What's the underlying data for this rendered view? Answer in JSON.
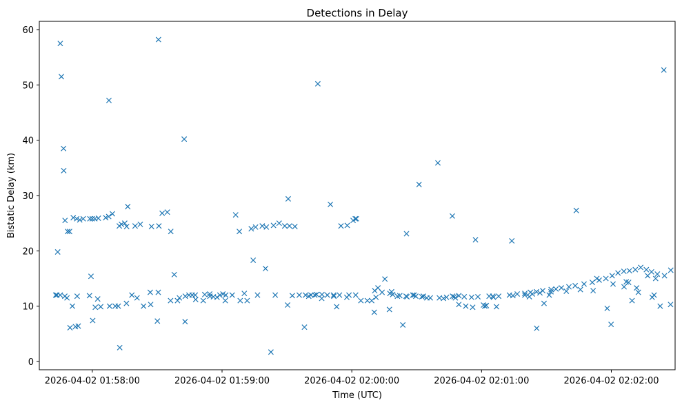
{
  "chart_data": {
    "type": "scatter",
    "title": "Detections in Delay",
    "xlabel": "Time (UTC)",
    "ylabel": "Bistatic Delay (km)",
    "x_unit": "seconds since 2026-04-02 01:57:00",
    "xlim": [
      35.5,
      329.5
    ],
    "ylim": [
      -1.5,
      61.5
    ],
    "x_ticks": [
      {
        "value": 60,
        "label": "2026-04-02 01:58:00"
      },
      {
        "value": 120,
        "label": "2026-04-02 01:59:00"
      },
      {
        "value": 180,
        "label": "2026-04-02 02:00:00"
      },
      {
        "value": 240,
        "label": "2026-04-02 02:01:00"
      },
      {
        "value": 300,
        "label": "2026-04-02 02:02:00"
      }
    ],
    "y_ticks": [
      0,
      10,
      20,
      30,
      40,
      50,
      60
    ],
    "marker": "x",
    "color": "#1f77b4",
    "series": [
      {
        "name": "Detections",
        "x": [
          45.2,
          45.7,
          46.7,
          47.4,
          48.6,
          49.5,
          51.2,
          52.8,
          54.2,
          55.8,
          58.9,
          60.0,
          61.2,
          62.8,
          66.2,
          67.6,
          69.3,
          72.5,
          73.5,
          75.0,
          75.9,
          79.8,
          82.2,
          87.4,
          90.8,
          92.3,
          94.7,
          96.3,
          99.4,
          100.3,
          104.7,
          106.2,
          107.6,
          112.0,
          114.4,
          116.0,
          117.7,
          119.0,
          120.4,
          121.7,
          128.0,
          133.5,
          135.5,
          138.6,
          140.5,
          143.8,
          146.4,
          149.0,
          151.2,
          153.7,
          155.7,
          158.6,
          161.1,
          163.7,
          166.2,
          168.7,
          171.6,
          175.0,
          177.9,
          180.6,
          182.1,
          184.2,
          187.2,
          190.6,
          194.0,
          197.6,
          198.9,
          202.2,
          205.1,
          208.2,
          209.6,
          212.4,
          216.3,
          220.5,
          223.8,
          226.6,
          229.5,
          232.0,
          235.4,
          238.3,
          240.9,
          243.5,
          247.9,
          252.9,
          256.5,
          260.0,
          262.6,
          265.4,
          268.3,
          272.2,
          274.4,
          276.9,
          280.4,
          283.3,
          287.4,
          291.2,
          294.4,
          297.5,
          300.4,
          303.1,
          305.8,
          308.4,
          311.1,
          313.6,
          316.2,
          318.6,
          321.3,
          324.6,
          43.6,
          44.0,
          45.2,
          47.3,
          53.0,
          58.7,
          61.4,
          70.6,
          75.8,
          80.7,
          86.8,
          90.5,
          103.0,
          114.3,
          124.7,
          128.4,
          136.4,
          144.6,
          152.5,
          162.9,
          171.7,
          174.3,
          178.7,
          181.8,
          189.2,
          192.1,
          198.4,
          205.5,
          213.1,
          227.9,
          232.7,
          241.5,
          245.5,
          254.5,
          260.0,
          263.5,
          267.0,
          272.1,
          279.2,
          285.7,
          291.6,
          300.8,
          306.9,
          308.0,
          312.5,
          316.8,
          320.5,
          327.4,
          327.5,
          43.1,
          49.7,
          52.2,
          63.9,
          68.0,
          83.7,
          90.1,
          102.9,
          111.3,
          130.3,
          140.1,
          160.1,
          177.7,
          191.2,
          197.4,
          201.1,
          208.8,
          222.4,
          229.5,
          235.9,
          242.2,
          246.9,
          262.1,
          271.3,
          293.3,
          298.1,
          305.9,
          311.7,
          318.9,
          319.8,
          50.8,
          48.3,
          62.5,
          72.0,
          78.3,
          87.0,
          96.2,
          107.8,
          121.5,
          131.6,
          150.3,
          166.1,
          173.0,
          195.3,
          203.6,
          214.7,
          227.3,
          245.2,
          268.9,
          309.6,
          322.6,
          46.8,
          53.5,
          59.4,
          60.2,
          67.7,
          72.7,
          76.4,
          90.6,
          97.9,
          102.5,
          126.3,
          134.4,
          142.6,
          150.6,
          158.1,
          164.3,
          170.1,
          181.6,
          190.4,
          205.3,
          211.1,
          219.8,
          226.5,
          237.2,
          254.0,
          265.5,
          283.8,
          299.9,
          324.3
        ],
        "y": [
          57.5,
          51.5,
          38.5,
          25.5,
          23.5,
          23.5,
          26.0,
          25.8,
          25.6,
          25.8,
          25.8,
          25.8,
          25.8,
          25.9,
          26.0,
          26.2,
          26.7,
          24.5,
          24.8,
          25.0,
          24.4,
          24.5,
          24.8,
          24.4,
          24.5,
          26.8,
          27.0,
          23.5,
          11.0,
          11.5,
          12.0,
          12.0,
          12.0,
          12.1,
          11.8,
          11.7,
          11.6,
          12.0,
          12.2,
          12.0,
          23.5,
          24.0,
          24.3,
          24.5,
          24.3,
          24.6,
          25.0,
          24.5,
          24.5,
          24.4,
          12.0,
          12.0,
          12.0,
          12.1,
          12.1,
          12.0,
          12.0,
          24.5,
          24.6,
          25.5,
          25.8,
          11.0,
          11.0,
          12.8,
          12.5,
          12.3,
          12.1,
          11.9,
          11.8,
          12.0,
          11.8,
          11.7,
          11.5,
          11.5,
          11.6,
          11.8,
          11.9,
          11.7,
          11.6,
          11.7,
          10.2,
          11.8,
          11.8,
          12.0,
          12.2,
          12.3,
          12.5,
          12.6,
          12.8,
          13.0,
          13.1,
          13.3,
          13.5,
          13.7,
          14.0,
          14.3,
          14.7,
          15.0,
          15.5,
          16.0,
          16.3,
          16.4,
          16.6,
          17.0,
          16.6,
          16.2,
          15.8,
          15.5,
          12.0,
          19.8,
          12.0,
          11.8,
          11.8,
          11.9,
          9.8,
          10.0,
          10.5,
          11.5,
          12.5,
          12.5,
          11.8,
          12.2,
          12.0,
          11.0,
          12.0,
          12.0,
          11.9,
          12.0,
          11.8,
          12.0,
          12.0,
          12.0,
          11.0,
          13.3,
          12.6,
          11.7,
          11.8,
          11.5,
          10.0,
          10.0,
          11.6,
          11.9,
          12.0,
          12.2,
          12.4,
          12.6,
          12.7,
          13.0,
          12.8,
          14.0,
          14.4,
          14.3,
          12.5,
          15.5,
          15.0,
          10.3,
          16.5,
          12.0,
          6.1,
          6.3,
          9.9,
          10.0,
          10.0,
          7.3,
          7.2,
          11.0,
          12.3,
          16.8,
          11.8,
          11.6,
          11.6,
          9.4,
          11.8,
          12.0,
          11.4,
          10.3,
          9.8,
          10.1,
          9.9,
          11.7,
          12.0,
          15.0,
          9.6,
          13.5,
          13.3,
          11.6,
          12.0,
          10.0,
          11.5,
          11.3,
          10.0,
          12.0,
          10.3,
          11.0,
          11.2,
          11.0,
          11.0,
          10.2,
          11.4,
          9.9,
          14.9,
          6.6,
          11.5,
          11.7,
          11.8,
          10.5,
          11.0,
          10.0,
          34.5,
          6.4,
          15.4,
          7.4,
          47.2,
          2.5,
          28.0,
          58.2,
          15.7,
          40.2,
          26.5,
          18.3,
          1.7,
          29.4,
          6.2,
          50.2,
          28.4,
          25.8,
          8.9,
          23.1,
          32.0,
          35.9,
          26.3,
          22.0,
          21.8,
          6.0,
          27.3,
          6.7,
          52.7
        ]
      }
    ]
  }
}
